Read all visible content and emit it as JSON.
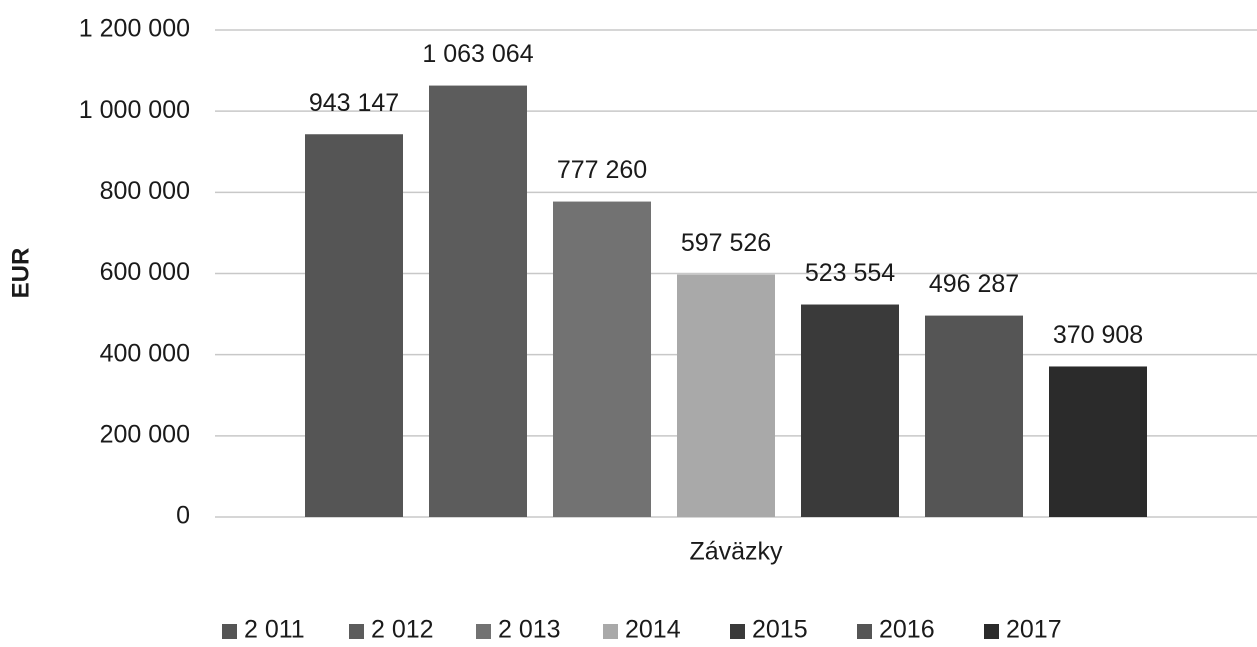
{
  "chart_data": {
    "type": "bar",
    "y_label": "EUR",
    "categories": [
      "Záväzky"
    ],
    "series": [
      {
        "name": "2 011",
        "color": "#555555",
        "values": [
          943147
        ],
        "value_labels": [
          "943 147"
        ]
      },
      {
        "name": "2 012",
        "color": "#5c5c5c",
        "values": [
          1063064
        ],
        "value_labels": [
          "1 063 064"
        ]
      },
      {
        "name": "2 013",
        "color": "#727272",
        "values": [
          777260
        ],
        "value_labels": [
          "777 260"
        ]
      },
      {
        "name": "2014",
        "color": "#a9a9a9",
        "values": [
          597526
        ],
        "value_labels": [
          "597 526"
        ]
      },
      {
        "name": "2015",
        "color": "#3a3a3a",
        "values": [
          523554
        ],
        "value_labels": [
          "523 554"
        ]
      },
      {
        "name": "2016",
        "color": "#555555",
        "values": [
          496287
        ],
        "value_labels": [
          "496 287"
        ]
      },
      {
        "name": "2017",
        "color": "#2b2b2b",
        "values": [
          370908
        ],
        "value_labels": [
          "370 908"
        ]
      }
    ],
    "ylim": [
      0,
      1200000
    ],
    "yticks": [
      0,
      {
        "value": 200000,
        "label": "200 000"
      },
      {
        "value": 400000,
        "label": "400 000"
      },
      {
        "value": 600000,
        "label": "600 000"
      },
      {
        "value": 800000,
        "label": "800 000"
      },
      {
        "value": 1000000,
        "label": "1 000 000"
      },
      {
        "value": 1200000,
        "label": "1 200 000"
      }
    ],
    "grid": true,
    "legend": "bottom"
  }
}
